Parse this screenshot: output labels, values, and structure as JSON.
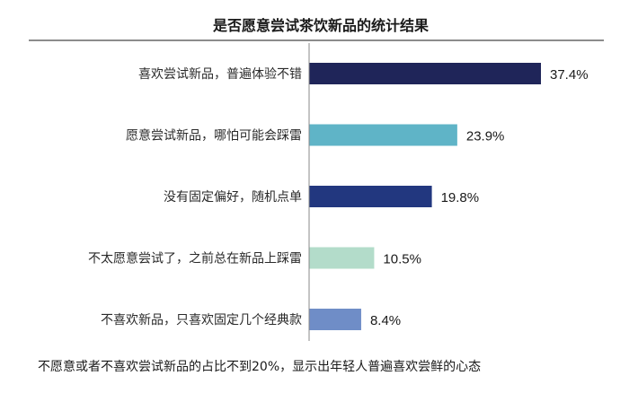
{
  "chart_data": {
    "type": "bar",
    "orientation": "horizontal",
    "title": "是否愿意尝试茶饮新品的统计结果",
    "categories": [
      "喜欢尝试新品，普遍体验不错",
      "愿意尝试新品，哪怕可能会踩雷",
      "没有固定偏好，随机点单",
      "不太愿意尝试了，之前总在新品上踩雷",
      "不喜欢新品，只喜欢固定几个经典款"
    ],
    "values": [
      37.4,
      23.9,
      19.8,
      10.5,
      8.4
    ],
    "value_labels": [
      "37.4%",
      "23.9%",
      "19.8%",
      "10.5%",
      "8.4%"
    ],
    "bar_colors": [
      "#1f2559",
      "#5fb4c7",
      "#22377f",
      "#b3dcca",
      "#6f8dc7"
    ],
    "xlim": [
      0,
      37.4
    ],
    "grid": false,
    "legend": "none"
  },
  "footnote": "不愿意或者不喜欢尝试新品的占比不到20%，显示出年轻人普遍喜欢尝鲜的心态",
  "colors": {
    "title_rule": "#1a1a1a",
    "axis_line": "#888888"
  }
}
